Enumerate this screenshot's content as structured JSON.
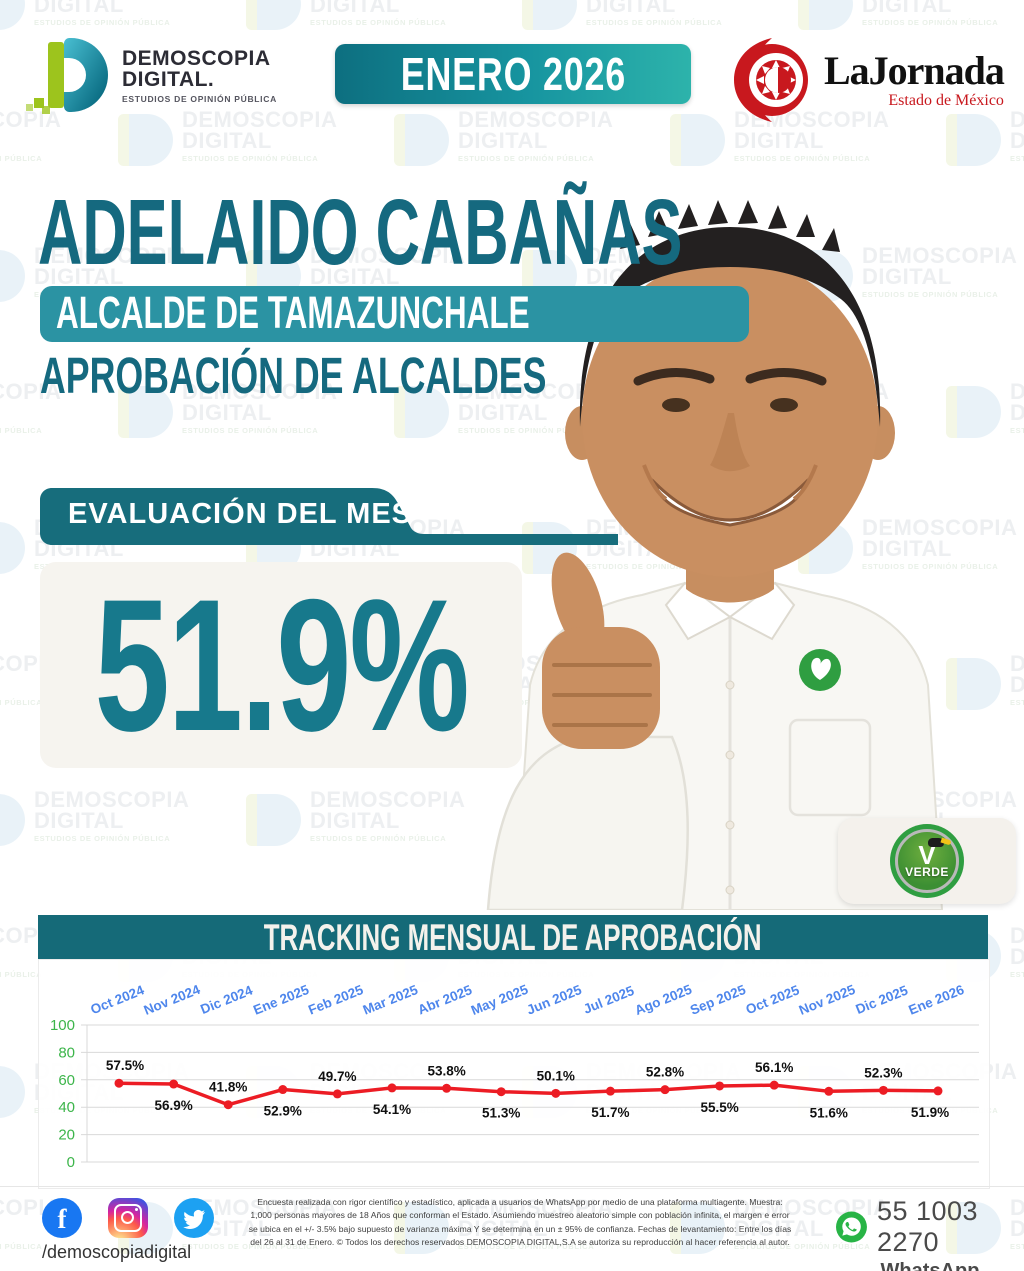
{
  "header": {
    "logo": {
      "title": "DEMOSCOPIA",
      "subtitle": "DIGITAL.",
      "tagline": "ESTUDIOS DE OPINIÓN PÚBLICA"
    },
    "period_badge": "ENERO 2026",
    "partner": {
      "name": "LaJornada",
      "region": "Estado de México"
    }
  },
  "watermark": {
    "line1": "DEMOSCOPIA",
    "line2": "DIGITAL",
    "line3": "ESTUDIOS DE OPINIÓN PÚBLICA"
  },
  "subject": {
    "name": "ADELAIDO CABAÑAS",
    "role_badge": "ALCALDE DE TAMAZUNCHALE",
    "section_title": "APROBACIÓN DE ALCALDES",
    "party": "VERDE"
  },
  "evaluation": {
    "label": "EVALUACIÓN DEL MES",
    "value": "51.9%"
  },
  "chart_data": {
    "type": "line",
    "title": "TRACKING MENSUAL DE APROBACIÓN",
    "x": [
      "Oct 2024",
      "Nov 2024",
      "Dic 2024",
      "Ene 2025",
      "Feb 2025",
      "Mar 2025",
      "Abr 2025",
      "May 2025",
      "Jun 2025",
      "Jul 2025",
      "Ago 2025",
      "Sep 2025",
      "Oct 2025",
      "Nov 2025",
      "Dic 2025",
      "Ene 2026"
    ],
    "series": [
      {
        "name": "Aprobación",
        "values": [
          57.5,
          56.9,
          41.8,
          52.9,
          49.7,
          54.1,
          53.8,
          51.3,
          50.1,
          51.7,
          52.8,
          55.5,
          56.1,
          51.6,
          52.3,
          51.9
        ]
      }
    ],
    "point_labels": [
      "57.5%",
      "56.9%",
      "41.8%",
      "52.9%",
      "49.7%",
      "54.1%",
      "53.8%",
      "51.3%",
      "50.1%",
      "51.7%",
      "52.8%",
      "55.5%",
      "56.1%",
      "51.6%",
      "52.3%",
      "51.9%"
    ],
    "ylim": [
      0,
      100
    ],
    "yticks": [
      0,
      20,
      40,
      60,
      80,
      100
    ],
    "grid": true,
    "legend_position": "none",
    "line_color": "#ec1c24",
    "ytick_color": "#3cb54a",
    "xtick_color": "#4e86ec"
  },
  "footer": {
    "social": [
      "facebook",
      "instagram",
      "twitter"
    ],
    "handle": "/demoscopiadigital",
    "disclaimer": "Encuesta realizada con rigor científico y estadístico, aplicada a usuarios de WhatsApp por medio de una plataforma multiagente. Muestra: 1,000 personas mayores de 18 Años que conforman el Estado. Asumiendo muestreo aleatorio simple con población infinita, el margen e error se ubica en el +/- 3.5% bajo supuesto de varianza máxima Y se determina en un ± 95% de confianza. Fechas de levantamiento: Entre los días del 26 al 31 de Enero. © Todos los derechos reservados DEMOSCOPIA DIGITAL,S.A se autoriza su reproducción al hacer referencia al autor.",
    "whatsapp": {
      "number": "55 1003 2270",
      "label": "WhatsApp"
    }
  },
  "colors": {
    "title_teal": "#15697f",
    "badge_teal": "#2b93a3",
    "banner_teal": "#156a78",
    "value_teal": "#17798c",
    "line_red": "#ec1c24",
    "ytick_green": "#3cb54a",
    "xtick_blue": "#4e86ec",
    "whatsapp_green": "#28b446",
    "jornada_red": "#c8181e",
    "logo_green": "#9dc41d"
  }
}
